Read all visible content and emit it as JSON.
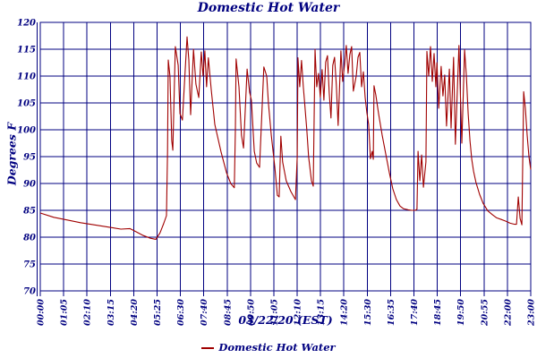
{
  "title": "Domestic Hot Water",
  "y_axis_label": "Degrees F",
  "x_axis_label": "03/22/20 (EST)",
  "legend": {
    "series_label": "Domestic Hot Water"
  },
  "colors": {
    "axis": "#000080",
    "grid": "#000080",
    "series": "#a00000",
    "background": "#ffffff"
  },
  "chart_data": {
    "type": "line",
    "title": "Domestic Hot Water",
    "xlabel": "03/22/20 (EST)",
    "ylabel": "Degrees F",
    "ylim": [
      70,
      120
    ],
    "y_ticks": [
      70,
      75,
      80,
      85,
      90,
      95,
      100,
      105,
      110,
      115,
      120
    ],
    "x_tick_labels": [
      "00:00",
      "01:05",
      "02:10",
      "03:15",
      "04:20",
      "05:25",
      "06:30",
      "07:40",
      "08:45",
      "09:50",
      "11:05",
      "12:10",
      "13:15",
      "14:20",
      "15:30",
      "16:35",
      "17:40",
      "18:45",
      "19:50",
      "20:55",
      "22:00",
      "23:00"
    ],
    "x_unit": "minutes_since_midnight",
    "xlim": [
      0,
      1380
    ],
    "grid": true,
    "legend_position": "bottom",
    "series": [
      {
        "name": "Domestic Hot Water",
        "color": "#a00000",
        "points": [
          [
            0,
            84.5
          ],
          [
            38,
            83.7
          ],
          [
            76,
            83.2
          ],
          [
            113,
            82.7
          ],
          [
            151,
            82.3
          ],
          [
            189,
            81.9
          ],
          [
            227,
            81.5
          ],
          [
            252,
            81.6
          ],
          [
            264,
            81.2
          ],
          [
            290,
            80.3
          ],
          [
            310,
            79.8
          ],
          [
            325,
            79.6
          ],
          [
            337,
            80.8
          ],
          [
            347,
            82.5
          ],
          [
            355,
            84.0
          ],
          [
            358,
            96.0
          ],
          [
            360,
            113.0
          ],
          [
            365,
            110.0
          ],
          [
            370,
            98.0
          ],
          [
            373,
            96.2
          ],
          [
            380,
            115.5
          ],
          [
            388,
            112.0
          ],
          [
            393,
            103.0
          ],
          [
            400,
            101.8
          ],
          [
            413,
            117.3
          ],
          [
            418,
            113.0
          ],
          [
            423,
            102.8
          ],
          [
            431,
            115.0
          ],
          [
            438,
            108.5
          ],
          [
            446,
            106.0
          ],
          [
            453,
            114.5
          ],
          [
            458,
            110.0
          ],
          [
            463,
            114.7
          ],
          [
            468,
            108.0
          ],
          [
            473,
            113.4
          ],
          [
            481,
            107.5
          ],
          [
            491,
            101.0
          ],
          [
            509,
            95.8
          ],
          [
            524,
            92.0
          ],
          [
            536,
            90.0
          ],
          [
            546,
            89.2
          ],
          [
            549,
            100.0
          ],
          [
            551,
            113.2
          ],
          [
            559,
            108.0
          ],
          [
            566,
            99.0
          ],
          [
            572,
            96.6
          ],
          [
            582,
            111.3
          ],
          [
            589,
            107.0
          ],
          [
            594,
            105.5
          ],
          [
            602,
            96.0
          ],
          [
            609,
            93.8
          ],
          [
            617,
            93.0
          ],
          [
            629,
            111.7
          ],
          [
            637,
            110.0
          ],
          [
            642,
            105.0
          ],
          [
            650,
            99.0
          ],
          [
            660,
            93.0
          ],
          [
            667,
            87.8
          ],
          [
            672,
            87.5
          ],
          [
            677,
            98.8
          ],
          [
            682,
            94.0
          ],
          [
            692,
            90.5
          ],
          [
            705,
            88.5
          ],
          [
            718,
            87.0
          ],
          [
            723,
            95.0
          ],
          [
            725,
            113.4
          ],
          [
            730,
            108.0
          ],
          [
            735,
            112.9
          ],
          [
            740,
            108.0
          ],
          [
            743,
            105.8
          ],
          [
            750,
            100.0
          ],
          [
            755,
            95.0
          ],
          [
            763,
            90.5
          ],
          [
            768,
            89.5
          ],
          [
            773,
            115.0
          ],
          [
            778,
            108.0
          ],
          [
            783,
            110.5
          ],
          [
            788,
            106.0
          ],
          [
            793,
            111.2
          ],
          [
            798,
            105.5
          ],
          [
            803,
            112.6
          ],
          [
            808,
            113.8
          ],
          [
            813,
            107.0
          ],
          [
            818,
            102.2
          ],
          [
            823,
            112.0
          ],
          [
            828,
            113.5
          ],
          [
            833,
            108.3
          ],
          [
            838,
            100.8
          ],
          [
            846,
            114.7
          ],
          [
            851,
            109.0
          ],
          [
            856,
            112.0
          ],
          [
            861,
            115.7
          ],
          [
            866,
            110.5
          ],
          [
            871,
            114.0
          ],
          [
            876,
            115.5
          ],
          [
            881,
            107.2
          ],
          [
            889,
            110.0
          ],
          [
            894,
            113.5
          ],
          [
            899,
            114.4
          ],
          [
            904,
            108.0
          ],
          [
            909,
            110.8
          ],
          [
            914,
            106.0
          ],
          [
            919,
            103.2
          ],
          [
            924,
            101.0
          ],
          [
            929,
            94.6
          ],
          [
            934,
            96.0
          ],
          [
            937,
            94.5
          ],
          [
            939,
            108.2
          ],
          [
            944,
            106.5
          ],
          [
            952,
            103.0
          ],
          [
            962,
            99.0
          ],
          [
            972,
            95.5
          ],
          [
            982,
            92.0
          ],
          [
            992,
            89.0
          ],
          [
            1002,
            87.0
          ],
          [
            1012,
            85.8
          ],
          [
            1022,
            85.3
          ],
          [
            1035,
            85.1
          ],
          [
            1045,
            85.0
          ],
          [
            1055,
            85.0
          ],
          [
            1060,
            85.2
          ],
          [
            1063,
            96.0
          ],
          [
            1068,
            90.5
          ],
          [
            1073,
            95.3
          ],
          [
            1078,
            89.3
          ],
          [
            1085,
            94.0
          ],
          [
            1088,
            114.6
          ],
          [
            1093,
            110.0
          ],
          [
            1098,
            115.5
          ],
          [
            1103,
            109.0
          ],
          [
            1108,
            114.2
          ],
          [
            1113,
            108.0
          ],
          [
            1116,
            112.5
          ],
          [
            1121,
            104.0
          ],
          [
            1128,
            111.8
          ],
          [
            1133,
            106.3
          ],
          [
            1138,
            110.2
          ],
          [
            1143,
            100.7
          ],
          [
            1151,
            111.3
          ],
          [
            1156,
            100.3
          ],
          [
            1163,
            113.5
          ],
          [
            1168,
            97.3
          ],
          [
            1178,
            115.7
          ],
          [
            1186,
            97.5
          ],
          [
            1194,
            114.9
          ],
          [
            1199,
            110.0
          ],
          [
            1204,
            103.0
          ],
          [
            1209,
            98.0
          ],
          [
            1214,
            94.5
          ],
          [
            1219,
            92.3
          ],
          [
            1226,
            90.2
          ],
          [
            1236,
            88.0
          ],
          [
            1246,
            86.3
          ],
          [
            1259,
            84.9
          ],
          [
            1272,
            84.2
          ],
          [
            1284,
            83.6
          ],
          [
            1297,
            83.3
          ],
          [
            1309,
            83.0
          ],
          [
            1322,
            82.6
          ],
          [
            1335,
            82.4
          ],
          [
            1340,
            82.4
          ],
          [
            1345,
            87.5
          ],
          [
            1350,
            83.5
          ],
          [
            1355,
            82.3
          ],
          [
            1360,
            107.1
          ],
          [
            1365,
            104.0
          ],
          [
            1370,
            99.0
          ],
          [
            1375,
            95.0
          ],
          [
            1380,
            92.6
          ]
        ]
      }
    ]
  }
}
